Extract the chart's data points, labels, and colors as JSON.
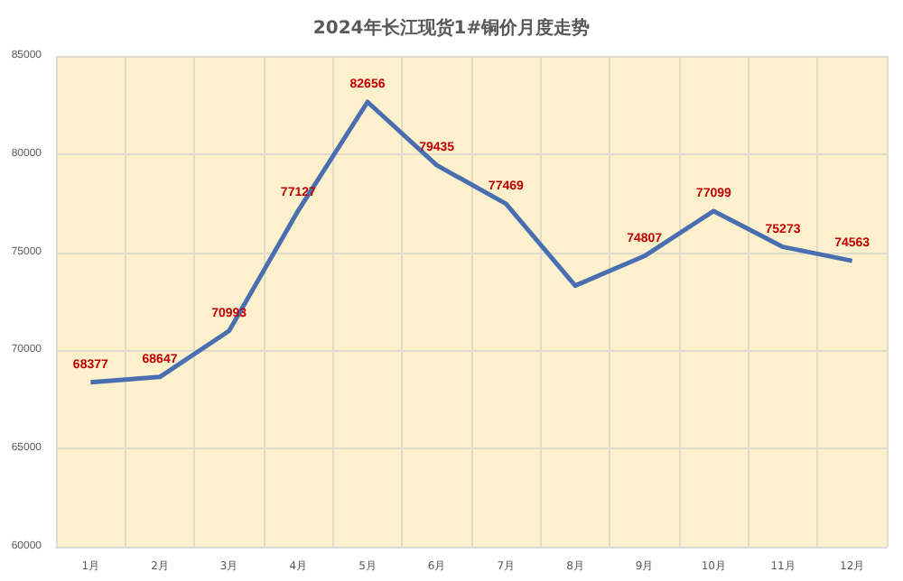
{
  "chart_data": {
    "type": "line",
    "title": "2024年长江现货1#铜价月度走势",
    "categories": [
      "1月",
      "2月",
      "3月",
      "4月",
      "5月",
      "6月",
      "7月",
      "8月",
      "9月",
      "10月",
      "11月",
      "12月"
    ],
    "series": [
      {
        "color": "#4a6fb0",
        "values": [
          68377,
          68647,
          70993,
          77127,
          82656,
          79435,
          77469,
          73300,
          74807,
          77099,
          75273,
          74563
        ],
        "value_labels": [
          "68377",
          "68647",
          "70993",
          "77127",
          "82656",
          "79435",
          "77469",
          null,
          "74807",
          "77099",
          "75273",
          "74563"
        ]
      }
    ],
    "ylim": [
      60000,
      85000
    ],
    "yticks": [
      60000,
      65000,
      70000,
      75000,
      80000,
      85000
    ],
    "grid": true,
    "marker": "none",
    "line_style": "solid"
  }
}
